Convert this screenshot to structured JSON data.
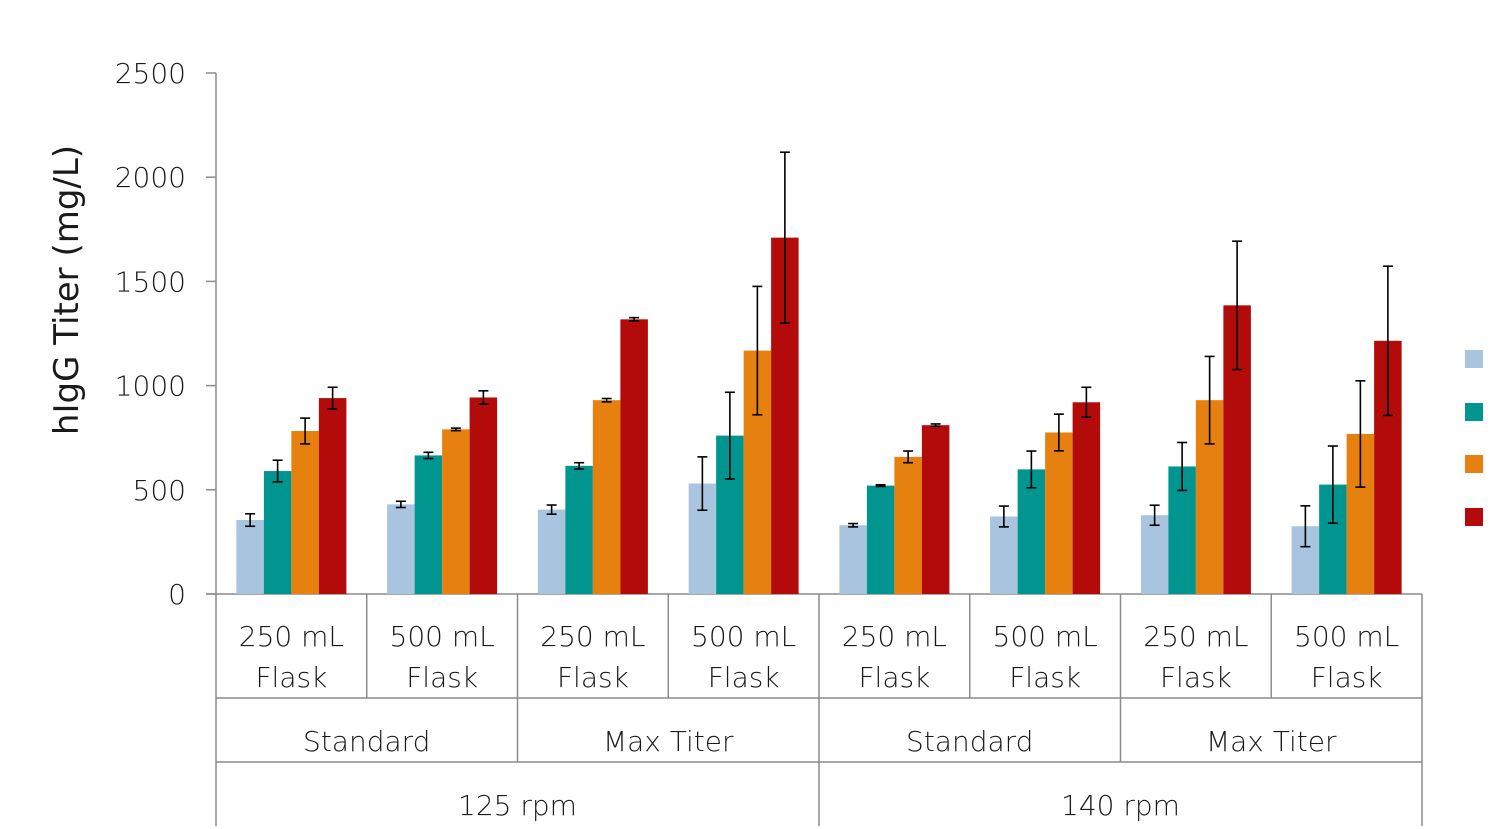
{
  "chart_data": {
    "type": "bar",
    "ylabel": "hIgG Titer (mg/L)",
    "ylim": [
      0,
      2500
    ],
    "yticks": [
      0,
      500,
      1000,
      1500,
      2000,
      2500
    ],
    "grid": false,
    "legend_position": "right",
    "categories_level1": [
      "250 mL Flask",
      "500 mL Flask",
      "250 mL Flask",
      "500 mL Flask",
      "250 mL Flask",
      "500 mL Flask",
      "250 mL Flask",
      "500 mL Flask"
    ],
    "categories_level1_lines": [
      [
        "250 mL",
        "Flask"
      ],
      [
        "500 mL",
        "Flask"
      ],
      [
        "250 mL",
        "Flask"
      ],
      [
        "500 mL",
        "Flask"
      ],
      [
        "250 mL",
        "Flask"
      ],
      [
        "500 mL",
        "Flask"
      ],
      [
        "250 mL",
        "Flask"
      ],
      [
        "500 mL",
        "Flask"
      ]
    ],
    "categories_level2": [
      "Standard",
      "Max Titer",
      "Standard",
      "Max Titer"
    ],
    "categories_level3": [
      "125 rpm",
      "140 rpm"
    ],
    "series": [
      {
        "color": "#a8c4de",
        "values": [
          355,
          430,
          405,
          530,
          330,
          372,
          378,
          325
        ],
        "errors": [
          30,
          15,
          22,
          128,
          8,
          50,
          48,
          98
        ]
      },
      {
        "color": "#00968f",
        "values": [
          590,
          665,
          615,
          760,
          520,
          598,
          612,
          525
        ],
        "errors": [
          52,
          15,
          15,
          208,
          4,
          88,
          115,
          185
        ]
      },
      {
        "color": "#e6800f",
        "values": [
          782,
          790,
          930,
          1168,
          658,
          775,
          930,
          768
        ],
        "errors": [
          62,
          6,
          8,
          308,
          28,
          88,
          210,
          255
        ]
      },
      {
        "color": "#b30a0a",
        "values": [
          940,
          943,
          1318,
          1710,
          810,
          920,
          1385,
          1215
        ],
        "errors": [
          52,
          32,
          8,
          410,
          6,
          72,
          308,
          358
        ]
      }
    ]
  }
}
